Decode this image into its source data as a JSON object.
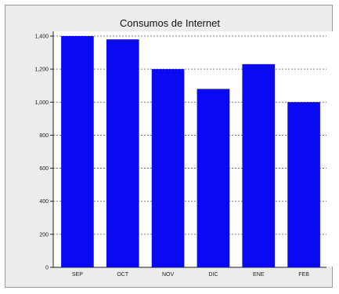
{
  "chart_data": {
    "type": "bar",
    "title": "Consumos de Internet",
    "categories": [
      "SEP",
      "OCT",
      "NOV",
      "DIC",
      "ENE",
      "FEB"
    ],
    "values": [
      1400,
      1380,
      1200,
      1080,
      1230,
      1000
    ],
    "ylim": [
      0,
      1400
    ],
    "yticks": [
      0,
      200,
      400,
      600,
      800,
      1000,
      1200,
      1400
    ],
    "ytick_labels": [
      "0",
      "200",
      "400",
      "600",
      "800",
      "1,000",
      "1,200",
      "1,400"
    ],
    "xlabel": "",
    "ylabel": "",
    "grid": true,
    "legend": false,
    "colors": {
      "bar": "#0a0af2",
      "plot_background": "#ffffff",
      "gridline": "#555555",
      "frame_background": "#ececec"
    }
  }
}
